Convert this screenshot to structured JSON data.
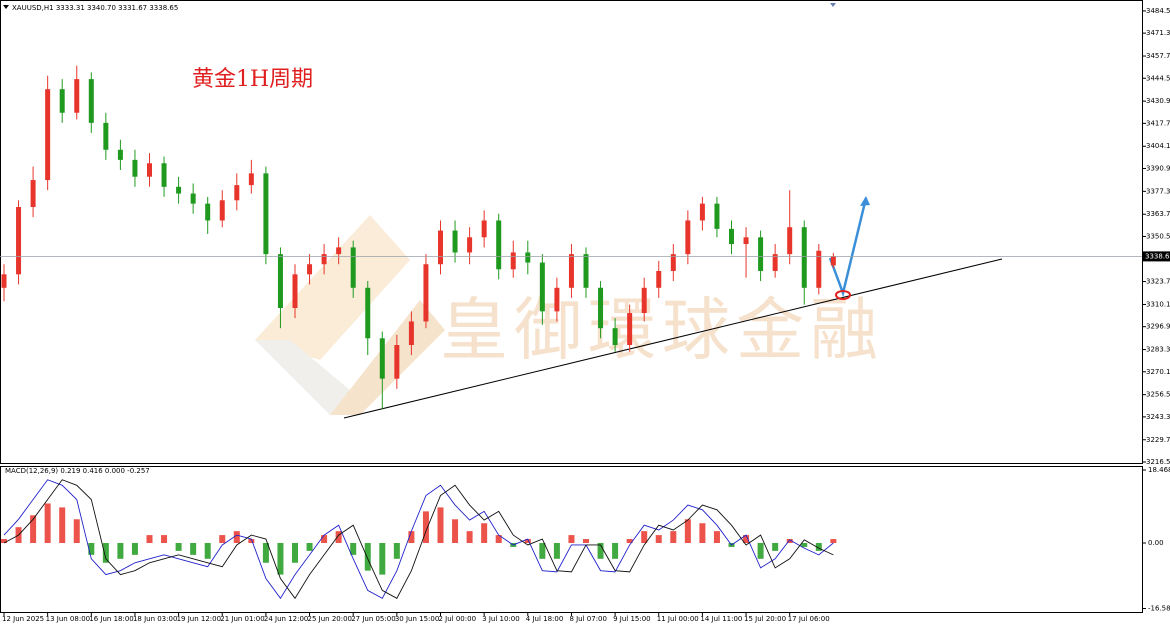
{
  "chart_data": [
    {
      "type": "candlestick",
      "header": "XAUUSD,H1  3333.31 3340.70 3331.67 3338.65",
      "annotation": "黄金1H周期",
      "watermark": "皇御環球金融",
      "categories": [
        "12 Jun 2025",
        null,
        null,
        "13 Jun 08:00",
        null,
        null,
        "16 Jun 18:00",
        null,
        null,
        "18 Jun 03:00",
        null,
        null,
        "19 Jun 12:00",
        null,
        null,
        "21 Jun 01:00",
        null,
        null,
        "24 Jun 12:00",
        null,
        null,
        "25 Jun 20:00",
        null,
        null,
        "27 Jun 05:00",
        null,
        null,
        "30 Jun 15:00",
        null,
        null,
        "2 Jul 00:00",
        null,
        null,
        "3 Jul 10:00",
        null,
        null,
        "4 Jul 18:00",
        null,
        null,
        "8 Jul 07:00",
        null,
        null,
        "9 Jul 15:00",
        null,
        null,
        "11 Jul 00:00",
        null,
        null,
        "14 Jul 11:00",
        null,
        null,
        "15 Jul 20:00",
        null,
        null,
        "17 Jul 06:00",
        null,
        null,
        null
      ],
      "open": [
        3320,
        3328,
        3368,
        3384,
        3438,
        3424,
        3444,
        3418,
        3402,
        3396,
        3386,
        3394,
        3380,
        3376,
        3370,
        3360,
        3372,
        3381,
        3388,
        3340,
        3308,
        3328,
        3334,
        3340,
        3344,
        3320,
        3290,
        3266,
        3286,
        3300,
        3334,
        3354,
        3341,
        3350,
        3360,
        3331,
        3341,
        3335,
        3306,
        3320,
        3340,
        3320,
        3296,
        3286,
        3305,
        3320,
        3330,
        3340,
        3360,
        3370,
        3355,
        3346,
        3350,
        3330,
        3340,
        3356,
        3320,
        3333.31
      ],
      "high": [
        3334,
        3372,
        3392,
        3446,
        3444,
        3452,
        3448,
        3424,
        3408,
        3402,
        3400,
        3398,
        3386,
        3382,
        3374,
        3378,
        3388,
        3396,
        3392,
        3344,
        3334,
        3340,
        3346,
        3350,
        3348,
        3324,
        3294,
        3292,
        3306,
        3340,
        3360,
        3360,
        3356,
        3366,
        3364,
        3348,
        3348,
        3340,
        3326,
        3346,
        3344,
        3324,
        3302,
        3310,
        3326,
        3336,
        3346,
        3366,
        3374,
        3374,
        3360,
        3356,
        3354,
        3346,
        3378,
        3360,
        3346,
        3340.7
      ],
      "low": [
        3312,
        3322,
        3362,
        3378,
        3418,
        3420,
        3412,
        3396,
        3390,
        3380,
        3380,
        3374,
        3370,
        3364,
        3352,
        3356,
        3366,
        3376,
        3334,
        3296,
        3302,
        3322,
        3328,
        3334,
        3314,
        3280,
        3248,
        3260,
        3280,
        3296,
        3328,
        3335,
        3334,
        3344,
        3325,
        3326,
        3328,
        3298,
        3300,
        3314,
        3314,
        3290,
        3282,
        3282,
        3300,
        3314,
        3324,
        3334,
        3354,
        3350,
        3340,
        3326,
        3324,
        3326,
        3334,
        3310,
        3316,
        3331.67
      ],
      "close": [
        3328,
        3368,
        3384,
        3438,
        3424,
        3444,
        3418,
        3402,
        3396,
        3386,
        3394,
        3380,
        3376,
        3370,
        3360,
        3372,
        3381,
        3388,
        3340,
        3308,
        3328,
        3334,
        3340,
        3344,
        3320,
        3290,
        3266,
        3286,
        3300,
        3334,
        3354,
        3341,
        3350,
        3360,
        3331,
        3341,
        3335,
        3306,
        3320,
        3340,
        3320,
        3296,
        3286,
        3305,
        3320,
        3330,
        3340,
        3360,
        3370,
        3355,
        3346,
        3350,
        3330,
        3340,
        3356,
        3320,
        3342,
        3338.65
      ],
      "current_price": 3338.65,
      "up_color": "#e8352b",
      "down_color": "#1f9a1f",
      "ylim": [
        3215.9,
        3490.4
      ],
      "yticks": [
        {
          "value": 3484.5,
          "label": "3484.50"
        },
        {
          "value": 3471.3,
          "label": "3471.30"
        },
        {
          "value": 3457.7,
          "label": "3457.70"
        },
        {
          "value": 3444.5,
          "label": "3444.50"
        },
        {
          "value": 3430.9,
          "label": "3430.90"
        },
        {
          "value": 3417.7,
          "label": "3417.70"
        },
        {
          "value": 3404.1,
          "label": "3404.10"
        },
        {
          "value": 3390.9,
          "label": "3390.90"
        },
        {
          "value": 3377.3,
          "label": "3377.30"
        },
        {
          "value": 3363.7,
          "label": "3363.70"
        },
        {
          "value": 3350.5,
          "label": "3350.50"
        },
        {
          "value": 3323.7,
          "label": "3323.70"
        },
        {
          "value": 3310.1,
          "label": "3310.10"
        },
        {
          "value": 3296.9,
          "label": "3296.90"
        },
        {
          "value": 3283.3,
          "label": "3283.30"
        },
        {
          "value": 3270.1,
          "label": "3270.10"
        },
        {
          "value": 3256.5,
          "label": "3256.50"
        },
        {
          "value": 3243.3,
          "label": "3243.30"
        },
        {
          "value": 3229.7,
          "label": "3229.70"
        },
        {
          "value": 3216.5,
          "label": "3216.50"
        }
      ]
    },
    {
      "type": "macd",
      "label": "MACD(12,26,9) 0.219 0.416 0.000 -0.257",
      "histogram": [
        1,
        4,
        7,
        10,
        9,
        6,
        -3,
        -5,
        -4,
        -3,
        2,
        2,
        -2,
        -3,
        -4,
        2,
        3,
        1,
        -5,
        -8,
        -5,
        -2,
        2,
        3,
        -3,
        -7,
        -8,
        -4,
        3,
        8,
        9,
        6,
        3,
        5,
        2,
        -1,
        1,
        -4,
        -4,
        2,
        1,
        -4,
        -4,
        1,
        3,
        2,
        3,
        6,
        5,
        3,
        -1,
        2,
        -4,
        -2,
        1,
        -1,
        -2,
        1
      ],
      "macd_line": [
        2,
        6,
        11,
        16,
        14.6,
        11,
        -4,
        -8,
        -7,
        -5,
        -4,
        -3,
        -4,
        -5,
        -6,
        -0.5,
        2,
        1,
        -9,
        -14,
        -8,
        -3,
        2,
        4.5,
        -4,
        -12,
        -14,
        -7,
        3,
        12,
        14.6,
        9.6,
        5.8,
        8,
        2,
        -0.5,
        1,
        -7,
        -7.3,
        -0.5,
        -0.5,
        -7,
        -7.3,
        -0.5,
        4.5,
        3.3,
        5.8,
        9.6,
        8.4,
        4.5,
        -0.5,
        2,
        -6.3,
        -4,
        0.8,
        -1.3,
        -3,
        0
      ],
      "signal_line": [
        0,
        2,
        6,
        11,
        16,
        14.6,
        11,
        -4,
        -8,
        -7,
        -5,
        -4,
        -3,
        -4,
        -5,
        -6,
        -0.5,
        2,
        1,
        -9,
        -14,
        -8,
        -3,
        2,
        4.5,
        -4,
        -12,
        -14,
        -7,
        3,
        12,
        14.6,
        9.6,
        5.8,
        8,
        2,
        -0.5,
        1,
        -7,
        -7.3,
        -0.5,
        -0.5,
        -7,
        -7.3,
        -0.5,
        4.5,
        3.3,
        5.8,
        9.6,
        8.4,
        4.5,
        -0.5,
        2,
        -6.3,
        -4,
        0.8,
        -1.3,
        -3
      ],
      "pos_color": "#e8352b",
      "neg_color": "#1f9a1f",
      "macd_color": "#2222cc",
      "signal_color": "#111111",
      "ylim": [
        -17.46,
        19.48
      ],
      "yticks": [
        18.468,
        {
          "value": 0,
          "label": "0.00"
        },
        -16.582
      ]
    }
  ]
}
